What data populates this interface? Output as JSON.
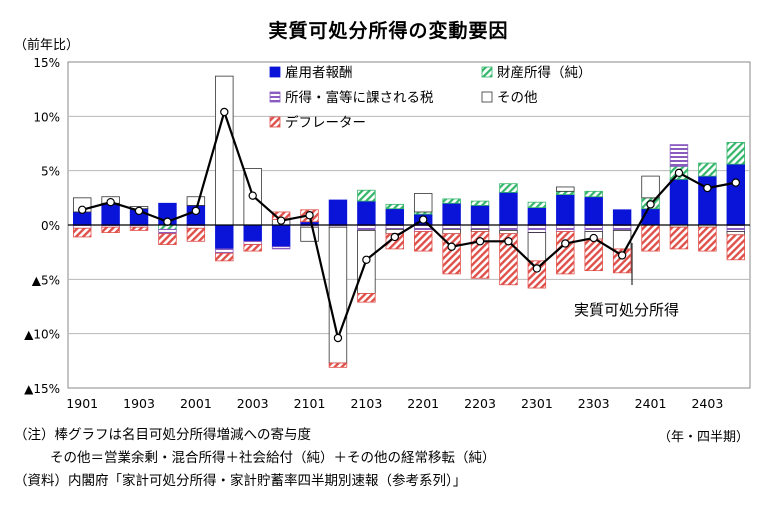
{
  "title": "実質可処分所得の変動要因",
  "y_unit": "（前年比）",
  "x_unit": "（年・四半期）",
  "notes": [
    "（注）棒グラフは名目可処分所得増減への寄与度",
    "その他＝営業余剰・混合所得＋社会給付（純）＋その他の経常移転（純）",
    "（資料）内閣府「家計可処分所得・家計貯蓄率四半期別速報（参考系列）」"
  ],
  "line_label": "実質可処分所得",
  "colors": {
    "employee": "#0a14d8",
    "property": "#33b56a",
    "tax": "#8a5cc0",
    "other": "#ffffff",
    "deflator": "#e0504a",
    "line": "#000000",
    "grid": "#b8b8b8"
  },
  "chart_data": {
    "type": "bar",
    "stacked": true,
    "ylim": [
      -15,
      15
    ],
    "yticks": [
      15,
      10,
      5,
      0,
      -5,
      -10,
      -15
    ],
    "ytick_labels": [
      "15%",
      "10%",
      "5%",
      "0%",
      "▲5%",
      "▲10%",
      "▲15%"
    ],
    "grid": true,
    "legend_position": "top",
    "categories": [
      "1901",
      "1902",
      "1903",
      "1904",
      "2001",
      "2002",
      "2003",
      "2004",
      "2101",
      "2102",
      "2103",
      "2104",
      "2201",
      "2202",
      "2203",
      "2204",
      "2301",
      "2302",
      "2303",
      "2304",
      "2401",
      "2402",
      "2403",
      "2404"
    ],
    "xtick_labels": [
      "1901",
      "",
      "1903",
      "",
      "2001",
      "",
      "2003",
      "",
      "2101",
      "",
      "2103",
      "",
      "2201",
      "",
      "2203",
      "",
      "2301",
      "",
      "2303",
      "",
      "2401",
      "",
      "2403",
      ""
    ],
    "series": [
      {
        "name": "雇用者報酬",
        "key": "employee",
        "values": [
          1.2,
          2.0,
          1.5,
          2.0,
          1.8,
          -2.2,
          -1.5,
          -2.0,
          0.3,
          2.3,
          2.2,
          1.5,
          1.0,
          2.0,
          1.8,
          3.0,
          1.6,
          2.8,
          2.6,
          1.4,
          1.5,
          4.2,
          4.5,
          5.6
        ]
      },
      {
        "name": "財産所得（純）",
        "key": "property",
        "values": [
          0.0,
          0.0,
          0.0,
          -0.4,
          0.0,
          0.0,
          0.0,
          0.0,
          0.0,
          0.0,
          1.0,
          0.4,
          0.2,
          0.4,
          0.4,
          0.8,
          0.5,
          0.3,
          0.5,
          0.0,
          1.0,
          1.2,
          1.2,
          2.0
        ]
      },
      {
        "name": "所得・富等に課される税",
        "key": "tax",
        "values": [
          -0.3,
          -0.2,
          -0.2,
          -0.4,
          -0.3,
          -0.4,
          -0.3,
          -0.2,
          -0.2,
          -0.2,
          -0.5,
          -0.4,
          -0.6,
          -0.4,
          -0.4,
          -0.5,
          -0.7,
          -0.6,
          -0.6,
          -0.5,
          0.0,
          2.0,
          0.0,
          -0.6
        ]
      },
      {
        "name": "その他",
        "key": "other",
        "values": [
          1.3,
          0.6,
          0.2,
          0.0,
          0.8,
          13.7,
          5.2,
          0.5,
          -1.3,
          -12.5,
          -5.8,
          -0.4,
          1.7,
          -0.4,
          -0.2,
          -0.3,
          -2.6,
          0.4,
          -0.7,
          -1.7,
          2.0,
          -0.2,
          -0.2,
          -0.3
        ]
      },
      {
        "name": "デフレーター",
        "key": "deflator",
        "values": [
          -0.8,
          -0.5,
          -0.3,
          -1.0,
          -1.2,
          -0.7,
          -0.6,
          0.7,
          1.1,
          -0.4,
          -0.8,
          -1.4,
          -1.8,
          -3.7,
          -4.3,
          -4.7,
          -2.5,
          -3.9,
          -2.9,
          -2.2,
          -2.4,
          -2.0,
          -2.2,
          -2.3
        ]
      }
    ],
    "line": {
      "name": "実質可処分所得",
      "values": [
        1.4,
        2.1,
        1.3,
        0.3,
        1.3,
        10.4,
        2.7,
        0.4,
        0.9,
        -10.4,
        -3.2,
        -1.1,
        0.5,
        -2.0,
        -1.5,
        -1.5,
        -4.0,
        -1.7,
        -1.2,
        -2.8,
        1.9,
        4.8,
        3.4,
        3.9
      ]
    },
    "legend": [
      "雇用者報酬",
      "財産所得（純）",
      "所得・富等に課される税",
      "その他",
      "デフレーター"
    ]
  }
}
